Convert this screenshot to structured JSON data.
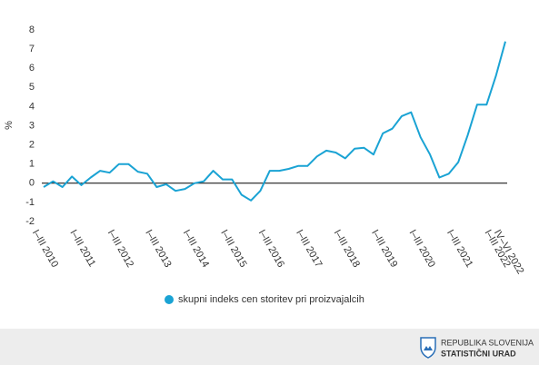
{
  "chart_data": {
    "type": "line",
    "ylabel": "%",
    "categories": [
      "I–III 2010",
      null,
      null,
      null,
      "I–III 2011",
      null,
      null,
      null,
      "I–III 2012",
      null,
      null,
      null,
      "I–III 2013",
      null,
      null,
      null,
      "I–III 2014",
      null,
      null,
      null,
      "I–III 2015",
      null,
      null,
      null,
      "I–III 2016",
      null,
      null,
      null,
      "I–III 2017",
      null,
      null,
      null,
      "I–III 2018",
      null,
      null,
      null,
      "I–III 2019",
      null,
      null,
      null,
      "I–III 2020",
      null,
      null,
      null,
      "I–III 2021",
      null,
      null,
      null,
      "I–III 2022",
      "IV–VI 2022"
    ],
    "series": [
      {
        "name": "skupni indeks cen storitev pri proizvajalcih",
        "color": "#1aa3d4",
        "values": [
          -0.2,
          0.1,
          -0.2,
          0.35,
          -0.1,
          0.3,
          0.65,
          0.55,
          1.0,
          1.0,
          0.6,
          0.5,
          -0.2,
          -0.05,
          -0.4,
          -0.3,
          0.0,
          0.1,
          0.65,
          0.2,
          0.2,
          -0.6,
          -0.9,
          -0.4,
          0.65,
          0.65,
          0.75,
          0.9,
          0.9,
          1.4,
          1.7,
          1.6,
          1.3,
          1.8,
          1.85,
          1.5,
          2.6,
          2.85,
          3.5,
          3.7,
          2.4,
          1.5,
          0.3,
          0.5,
          1.1,
          2.5,
          4.1,
          4.1,
          5.6,
          7.4
        ]
      }
    ],
    "ylim": [
      -2,
      8
    ],
    "yticks": [
      -2,
      -1,
      0,
      1,
      2,
      3,
      4,
      5,
      6,
      7,
      8
    ],
    "legend": "bottom"
  },
  "footer": {
    "line1": "REPUBLIKA SLOVENIJA",
    "line2": "STATISTIČNI URAD"
  }
}
